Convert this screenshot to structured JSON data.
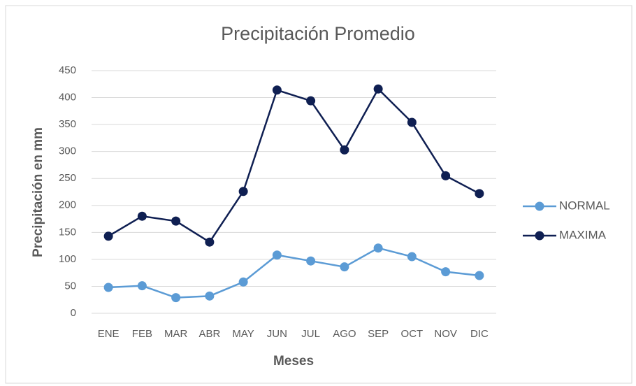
{
  "chart_data": {
    "type": "line",
    "title": "Precipitación Promedio",
    "x_label": "Meses",
    "y_label": "Precipitación en mm",
    "categories": [
      "ENE",
      "FEB",
      "MAR",
      "ABR",
      "MAY",
      "JUN",
      "JUL",
      "AGO",
      "SEP",
      "OCT",
      "NOV",
      "DIC"
    ],
    "series": [
      {
        "name": "NORMAL",
        "color": "#5b9bd5",
        "values": [
          48,
          51,
          29,
          32,
          58,
          108,
          97,
          86,
          121,
          105,
          77,
          70
        ]
      },
      {
        "name": "MAXIMA",
        "color": "#0f1f52",
        "values": [
          143,
          180,
          171,
          132,
          226,
          414,
          394,
          303,
          416,
          354,
          255,
          222
        ]
      }
    ],
    "ylim": [
      0,
      450
    ],
    "yticks": [
      0,
      50,
      100,
      150,
      200,
      250,
      300,
      350,
      400,
      450
    ],
    "grid": true,
    "legend": "right"
  }
}
